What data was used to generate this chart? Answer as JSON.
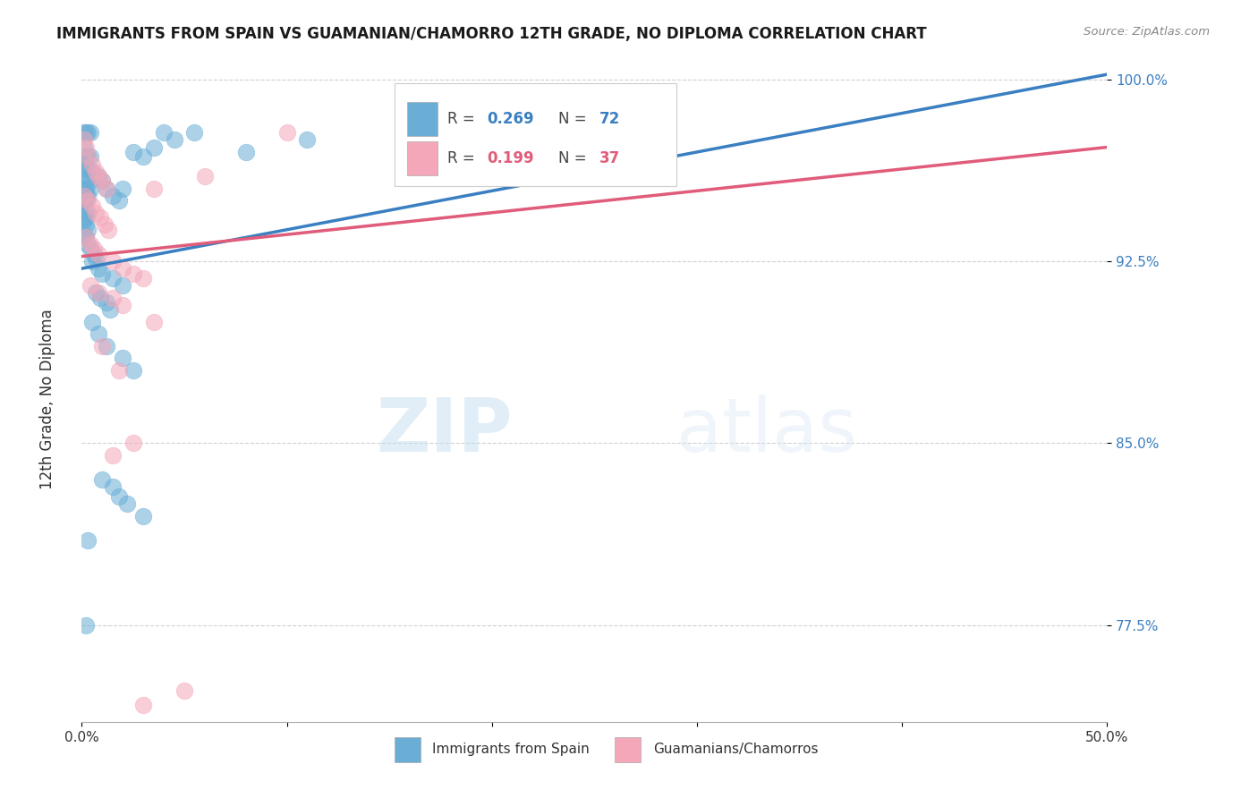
{
  "title": "IMMIGRANTS FROM SPAIN VS GUAMANIAN/CHAMORRO 12TH GRADE, NO DIPLOMA CORRELATION CHART",
  "source": "Source: ZipAtlas.com",
  "ylabel_label": "12th Grade, No Diploma",
  "legend_label_blue": "Immigrants from Spain",
  "legend_label_pink": "Guamanians/Chamorros",
  "R_blue": 0.269,
  "N_blue": 72,
  "R_pink": 0.199,
  "N_pink": 37,
  "xlim": [
    0.0,
    0.5
  ],
  "ylim": [
    0.735,
    1.008
  ],
  "xticks": [
    0.0,
    0.1,
    0.2,
    0.3,
    0.4,
    0.5
  ],
  "xtick_labels": [
    "0.0%",
    "",
    "",
    "",
    "",
    "50.0%"
  ],
  "yticks": [
    0.775,
    0.85,
    0.925,
    1.0
  ],
  "ytick_labels": [
    "77.5%",
    "85.0%",
    "92.5%",
    "100.0%"
  ],
  "color_blue": "#6aaed6",
  "color_pink": "#f4a7b9",
  "line_color_blue": "#3a7fc1",
  "line_color_pink": "#e05c7a",
  "watermark_zip": "ZIP",
  "watermark_atlas": "atlas",
  "blue_x": [
    0.001,
    0.002,
    0.003,
    0.004,
    0.001,
    0.002,
    0.003,
    0.004,
    0.001,
    0.002,
    0.003,
    0.005,
    0.001,
    0.002,
    0.003,
    0.004,
    0.001,
    0.002,
    0.001,
    0.002,
    0.003,
    0.001,
    0.002,
    0.001,
    0.002,
    0.003,
    0.001,
    0.002,
    0.001,
    0.002,
    0.003,
    0.001,
    0.002,
    0.003,
    0.004,
    0.006,
    0.007,
    0.008,
    0.01,
    0.012,
    0.015,
    0.018,
    0.02,
    0.025,
    0.03,
    0.035,
    0.04,
    0.045,
    0.055,
    0.08,
    0.11,
    0.005,
    0.008,
    0.01,
    0.015,
    0.02,
    0.007,
    0.009,
    0.012,
    0.014,
    0.008,
    0.012,
    0.02,
    0.025,
    0.01,
    0.015,
    0.018,
    0.022,
    0.002,
    0.003,
    0.03,
    0.005
  ],
  "blue_y": [
    0.978,
    0.978,
    0.978,
    0.978,
    0.972,
    0.968,
    0.968,
    0.968,
    0.965,
    0.963,
    0.963,
    0.962,
    0.96,
    0.958,
    0.957,
    0.955,
    0.955,
    0.955,
    0.952,
    0.952,
    0.952,
    0.95,
    0.95,
    0.948,
    0.945,
    0.945,
    0.943,
    0.943,
    0.942,
    0.94,
    0.938,
    0.936,
    0.935,
    0.932,
    0.93,
    0.928,
    0.926,
    0.96,
    0.958,
    0.955,
    0.952,
    0.95,
    0.955,
    0.97,
    0.968,
    0.972,
    0.978,
    0.975,
    0.978,
    0.97,
    0.975,
    0.925,
    0.922,
    0.92,
    0.918,
    0.915,
    0.912,
    0.91,
    0.908,
    0.905,
    0.895,
    0.89,
    0.885,
    0.88,
    0.835,
    0.832,
    0.828,
    0.825,
    0.775,
    0.81,
    0.82,
    0.9
  ],
  "pink_x": [
    0.001,
    0.002,
    0.003,
    0.005,
    0.007,
    0.008,
    0.01,
    0.012,
    0.001,
    0.003,
    0.005,
    0.007,
    0.009,
    0.011,
    0.013,
    0.002,
    0.004,
    0.006,
    0.008,
    0.015,
    0.02,
    0.025,
    0.03,
    0.035,
    0.06,
    0.1,
    0.004,
    0.008,
    0.015,
    0.02,
    0.035,
    0.018,
    0.01,
    0.025,
    0.015,
    0.03,
    0.05
  ],
  "pink_y": [
    0.975,
    0.972,
    0.968,
    0.965,
    0.962,
    0.96,
    0.958,
    0.955,
    0.952,
    0.95,
    0.948,
    0.945,
    0.943,
    0.94,
    0.938,
    0.935,
    0.932,
    0.93,
    0.928,
    0.925,
    0.922,
    0.92,
    0.918,
    0.955,
    0.96,
    0.978,
    0.915,
    0.912,
    0.91,
    0.907,
    0.9,
    0.88,
    0.89,
    0.85,
    0.845,
    0.742,
    0.748
  ]
}
